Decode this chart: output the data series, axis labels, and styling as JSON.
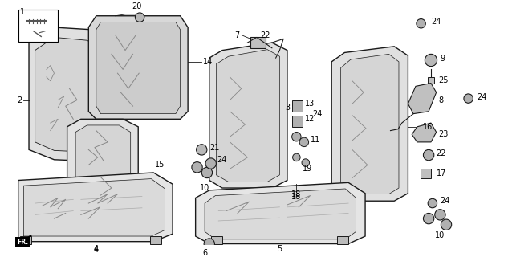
{
  "title": "",
  "background_color": "#ffffff",
  "figsize": [
    6.33,
    3.2
  ],
  "dpi": 100,
  "line_color": "#1a1a1a",
  "seat_fill": "#e8e8e8",
  "seat_edge": "#1a1a1a",
  "panel_fill": "#d8d8d8",
  "text_color": "#000000",
  "font_size": 7.0,
  "lw_main": 1.0,
  "lw_detail": 0.6
}
